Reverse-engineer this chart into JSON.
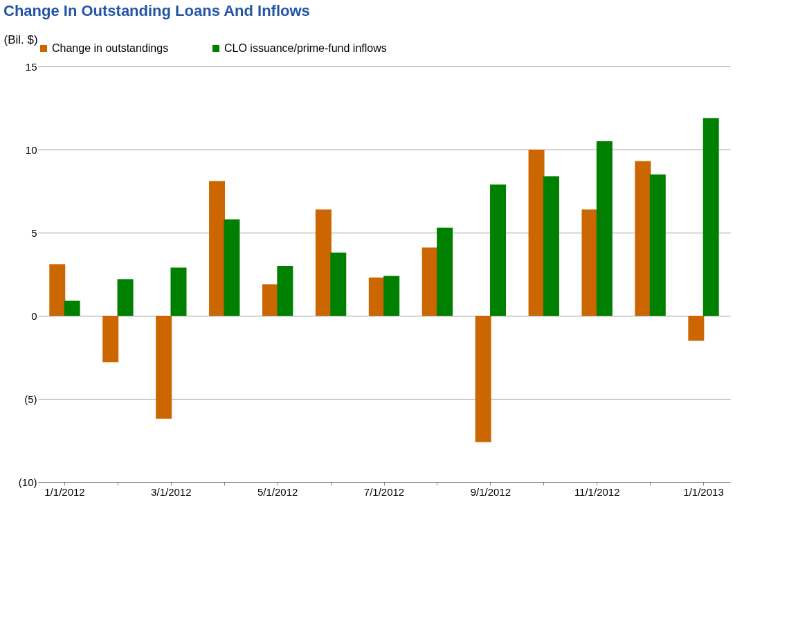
{
  "chart_data": {
    "type": "bar",
    "title": "Change In Outstanding Loans And Inflows",
    "ylabel": "(Bil. $)",
    "categories": [
      "1/1/2012",
      null,
      "3/1/2012",
      null,
      "5/1/2012",
      null,
      "7/1/2012",
      null,
      "9/1/2012",
      null,
      "11/1/2012",
      null,
      "1/1/2013"
    ],
    "series": [
      {
        "name": "Change in outstandings",
        "color": "#cc6600",
        "values": [
          3.1,
          -2.8,
          -6.2,
          8.1,
          1.9,
          6.4,
          2.3,
          4.1,
          -7.6,
          10.0,
          6.4,
          9.3,
          -1.5
        ]
      },
      {
        "name": "CLO issuance/prime-fund inflows",
        "color": "#008000",
        "values": [
          0.9,
          2.2,
          2.9,
          5.8,
          3.0,
          3.8,
          2.4,
          5.3,
          7.9,
          8.4,
          10.5,
          8.5,
          11.9
        ]
      }
    ],
    "ylim": [
      -10,
      15
    ],
    "yticks": [
      {
        "value": -10,
        "label": "(10)"
      },
      {
        "value": -5,
        "label": "(5)"
      },
      0,
      5,
      10,
      15
    ],
    "grid": "y",
    "legend": "top"
  }
}
